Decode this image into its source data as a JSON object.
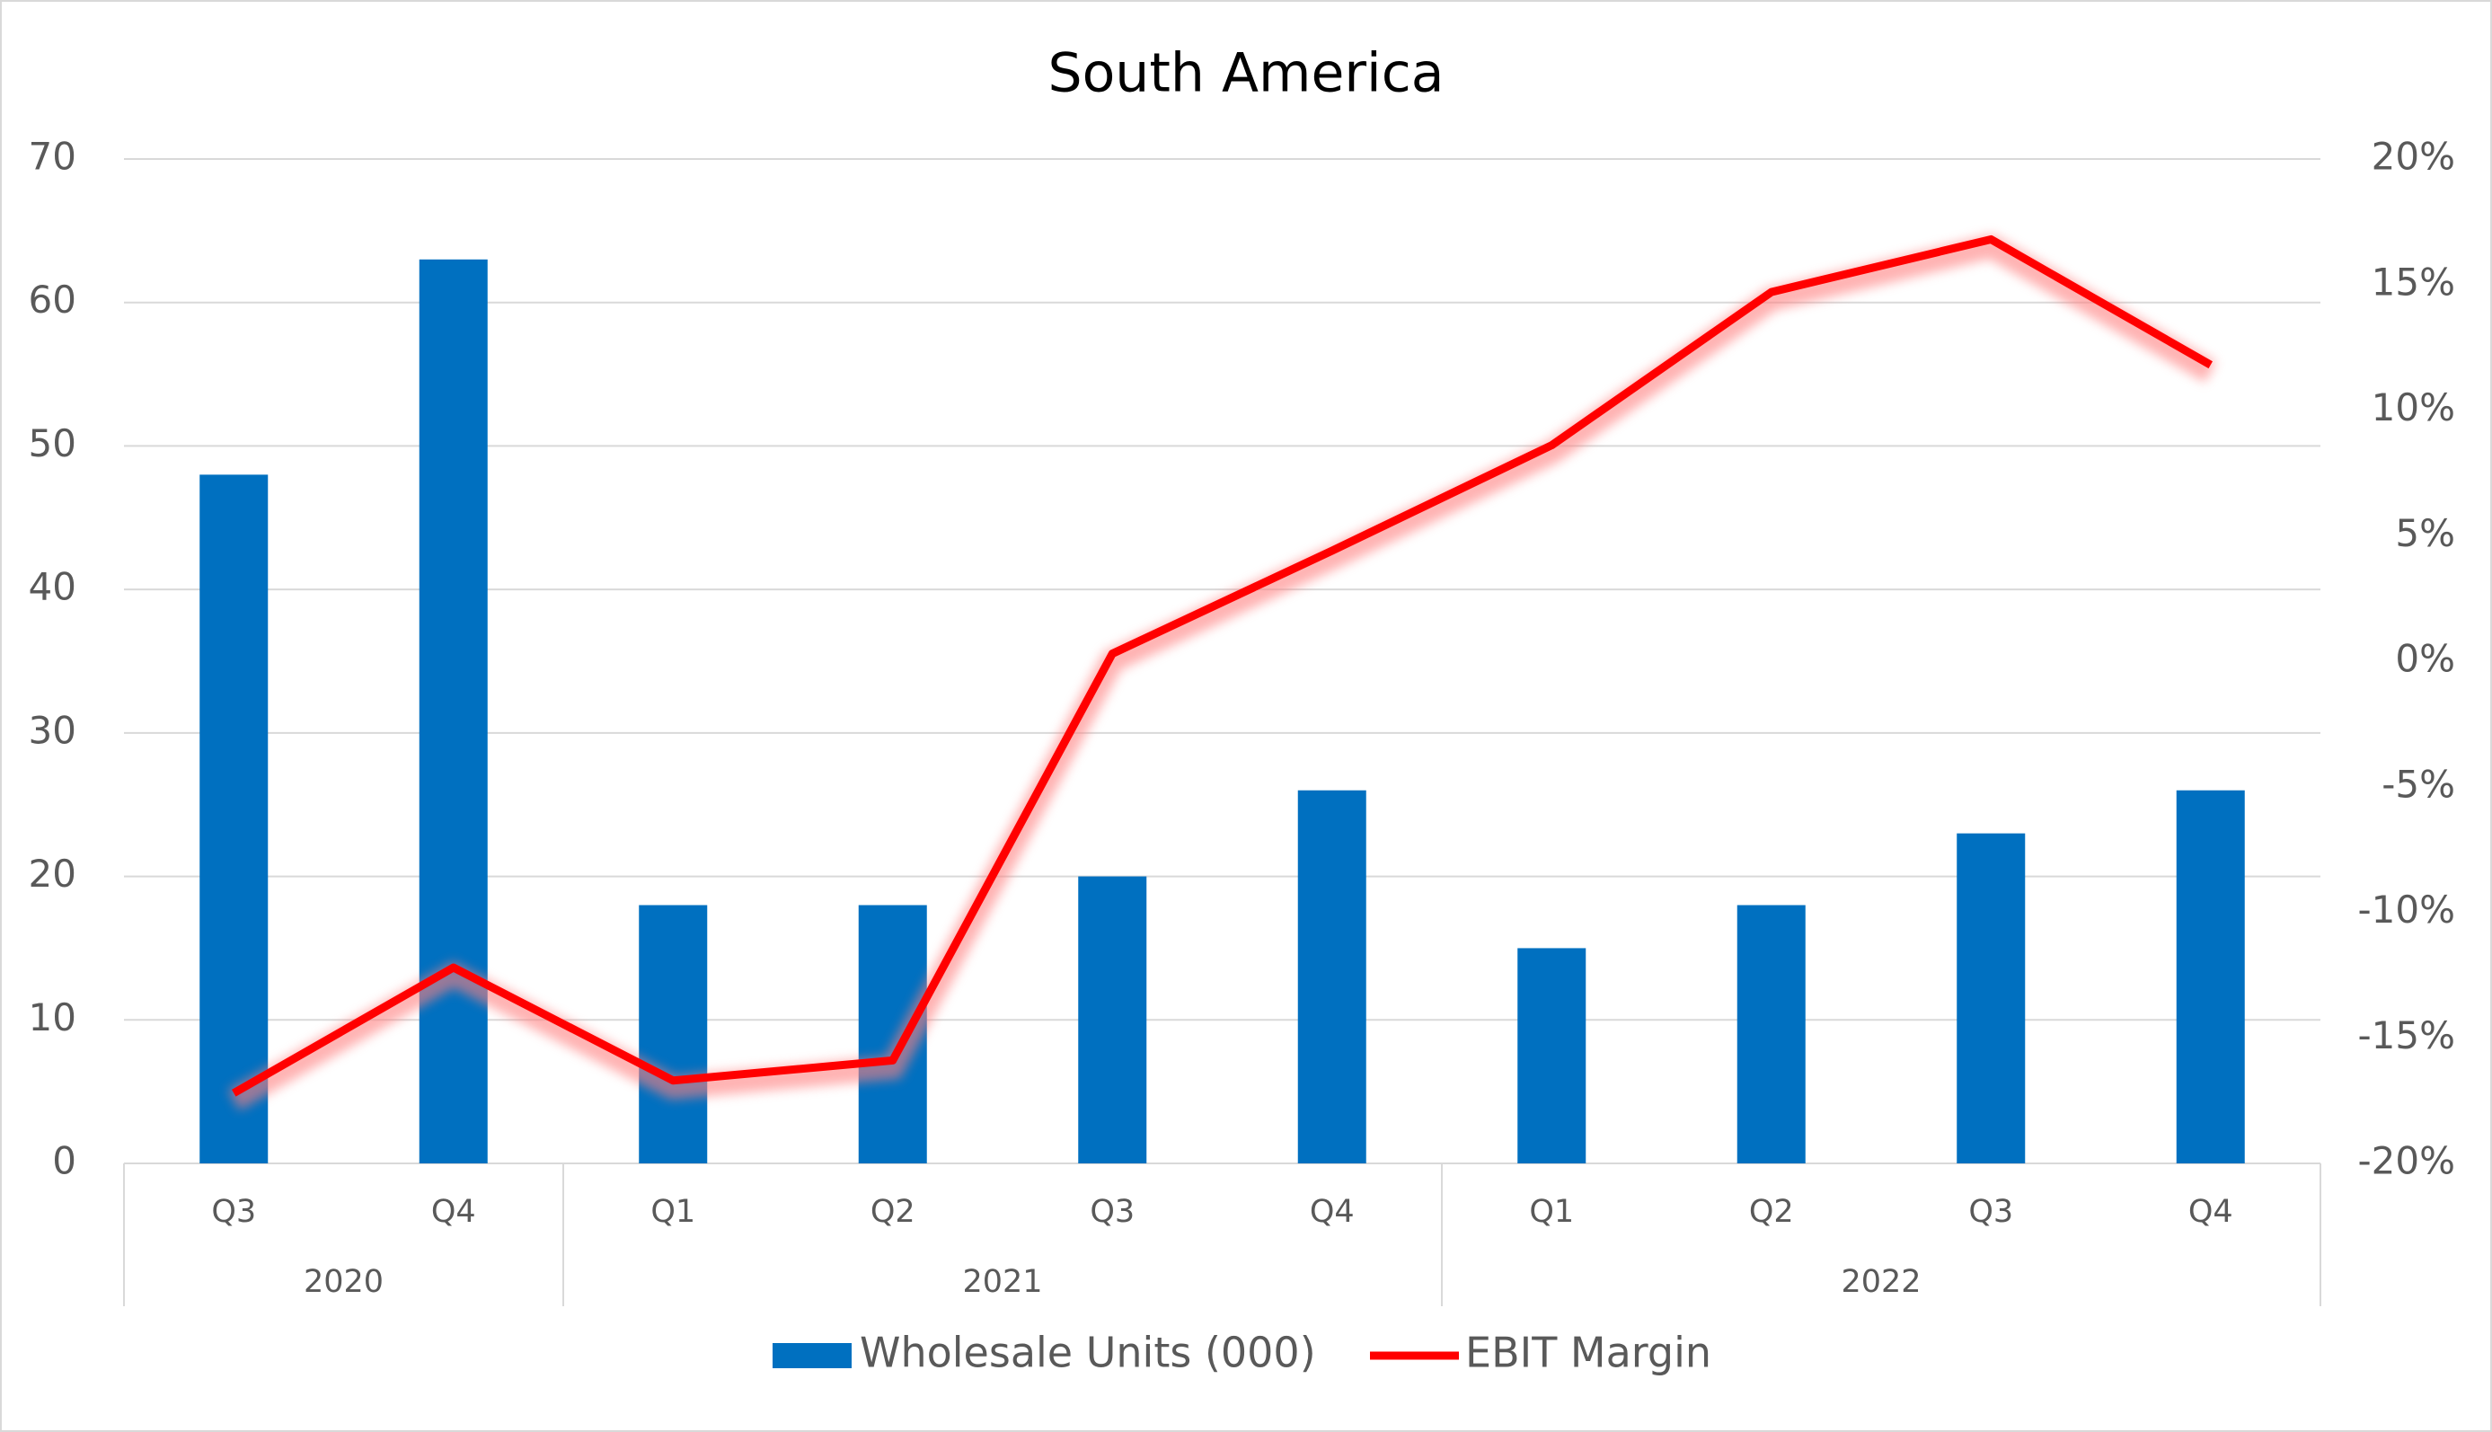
{
  "chart_data": {
    "type": "bar-line",
    "title": "South America",
    "categories": [
      "Q3",
      "Q4",
      "Q1",
      "Q2",
      "Q3",
      "Q4",
      "Q1",
      "Q2",
      "Q3",
      "Q4"
    ],
    "category_groups": [
      {
        "label": "2020",
        "size": 2
      },
      {
        "label": "2021",
        "size": 4
      },
      {
        "label": "2022",
        "size": 4
      }
    ],
    "series": [
      {
        "name": "Wholesale Units (000)",
        "type": "bar",
        "color": "#0070c0",
        "values": [
          48,
          63,
          18,
          18,
          20,
          26,
          15,
          18,
          23,
          26
        ]
      },
      {
        "name": "EBIT Margin",
        "type": "line",
        "axis": "y2",
        "color": "#ff0000",
        "values": [
          -17.2,
          -12.2,
          -16.7,
          -15.9,
          0.3,
          4.4,
          8.6,
          14.7,
          16.8,
          11.8
        ]
      }
    ],
    "ylim": [
      0,
      70
    ],
    "yticks": [
      0,
      10,
      20,
      30,
      40,
      50,
      60,
      70
    ],
    "y2lim": [
      -20,
      20
    ],
    "y2ticks": [
      {
        "value": -20,
        "label": "-20%"
      },
      {
        "value": -15,
        "label": "-15%"
      },
      {
        "value": -10,
        "label": "-10%"
      },
      {
        "value": -5,
        "label": "-5%"
      },
      {
        "value": 0,
        "label": "0%"
      },
      {
        "value": 5,
        "label": "5%"
      },
      {
        "value": 10,
        "label": "10%"
      },
      {
        "value": 15,
        "label": "15%"
      },
      {
        "value": 20,
        "label": "20%"
      }
    ],
    "grid": true,
    "legend": "bottom"
  }
}
